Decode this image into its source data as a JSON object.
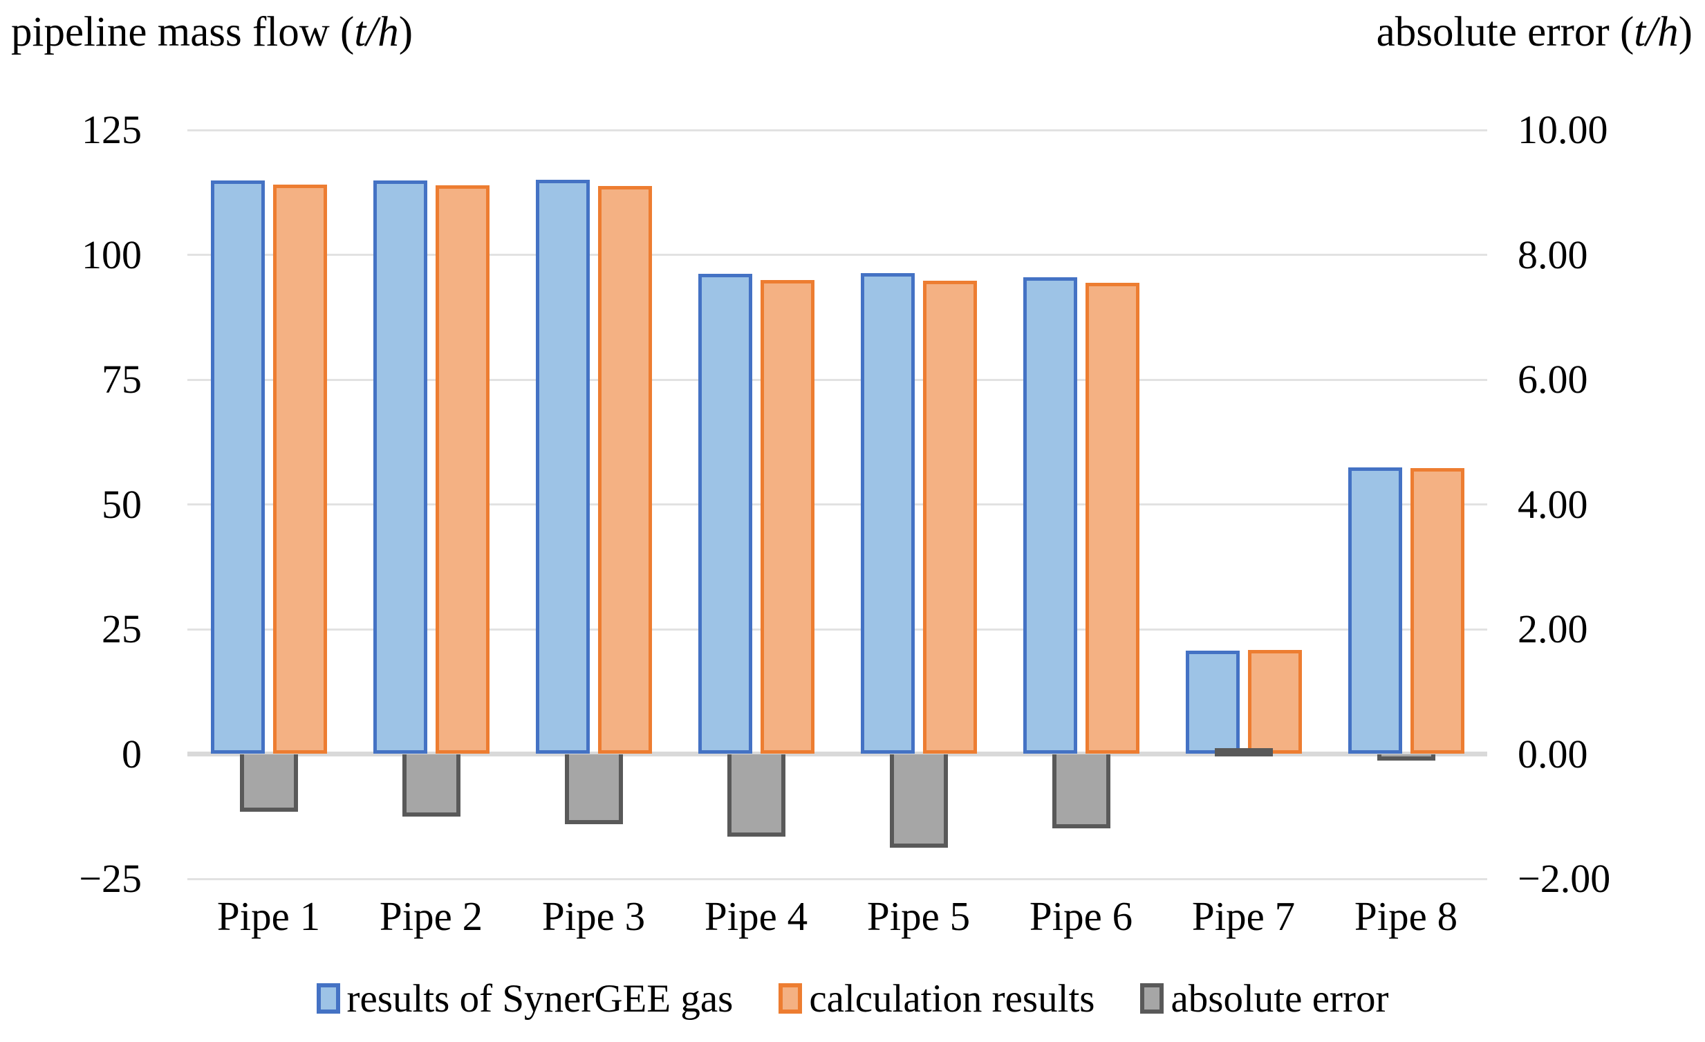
{
  "header": {
    "left_title_prefix": "pipeline mass flow (",
    "left_title_unit": "t/h",
    "left_title_suffix": ")",
    "right_title_prefix": "absolute error (",
    "right_title_unit": "t/h",
    "right_title_suffix": ")"
  },
  "chart_data": {
    "type": "bar",
    "subtype": "clustered-dual-axis",
    "categories": [
      "Pipe 1",
      "Pipe 2",
      "Pipe 3",
      "Pipe 4",
      "Pipe 5",
      "Pipe 6",
      "Pipe 7",
      "Pipe 8"
    ],
    "series": [
      {
        "name": "results of SynerGEE gas",
        "axis": "left",
        "values": [
          114.9,
          114.9,
          115.0,
          96.2,
          96.3,
          95.5,
          20.7,
          57.4
        ],
        "fill": "#9dc3e6",
        "border": "#4472c4"
      },
      {
        "name": "calculation results",
        "axis": "left",
        "values": [
          114.0,
          113.9,
          113.8,
          94.9,
          94.8,
          94.4,
          20.8,
          57.3
        ],
        "fill": "#f4b183",
        "border": "#ed7d31"
      },
      {
        "name": "absolute error",
        "axis": "right",
        "values": [
          -0.93,
          -1.0,
          -1.12,
          -1.32,
          -1.5,
          -1.19,
          0.06,
          -0.1
        ],
        "fill": "#a6a6a6",
        "border": "#595959"
      }
    ],
    "left_axis": {
      "label": "pipeline mass flow (t/h)",
      "min": -25,
      "max": 125,
      "tick_step": 25,
      "ticks": [
        "125",
        "100",
        "75",
        "50",
        "25",
        "0",
        "−25"
      ]
    },
    "right_axis": {
      "label": "absolute error (t/h)",
      "min": -2,
      "max": 10,
      "tick_step": 2,
      "ticks": [
        "10.00",
        "8.00",
        "6.00",
        "4.00",
        "2.00",
        "0.00",
        "−2.00"
      ]
    },
    "grid": true,
    "legend_position": "bottom",
    "gridline_color": "#e2e2e2",
    "zero_line_color": "#d9d9d9"
  }
}
